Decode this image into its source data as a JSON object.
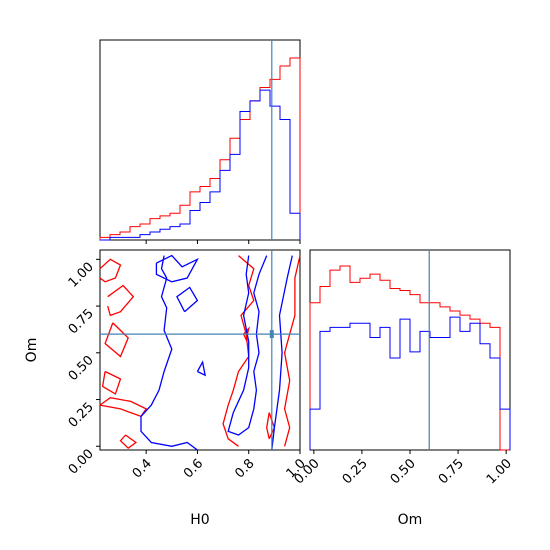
{
  "chart_data": [
    {
      "type": "histogram",
      "panel": "H0 marginal",
      "x_range": [
        0.22,
        1.0
      ],
      "truth": 0.89,
      "bins": [
        0.22,
        0.259,
        0.298,
        0.337,
        0.376,
        0.415,
        0.454,
        0.493,
        0.532,
        0.571,
        0.61,
        0.649,
        0.688,
        0.727,
        0.766,
        0.805,
        0.844,
        0.883,
        0.922,
        0.961,
        1.0
      ],
      "series": [
        {
          "color": "#ff0000",
          "counts": [
            1,
            2,
            3,
            5,
            6,
            8,
            9,
            10,
            13,
            18,
            20,
            23,
            30,
            38,
            45,
            52,
            57,
            60,
            65,
            68
          ]
        },
        {
          "color": "#0000ff",
          "counts": [
            0,
            1,
            1,
            1,
            2,
            3,
            4,
            5,
            6,
            11,
            14,
            18,
            26,
            32,
            48,
            52,
            56,
            50,
            45,
            10
          ]
        }
      ]
    },
    {
      "type": "contour",
      "panel": "H0 vs Om",
      "xlabel": "H0",
      "ylabel": "Om",
      "xlim": [
        0.22,
        1.0
      ],
      "ylim": [
        -0.02,
        1.05
      ],
      "xticks": [
        "0.4",
        "0.6",
        "0.8",
        "1.0"
      ],
      "yticks": [
        "0.00",
        "0.25",
        "0.50",
        "0.75",
        "1.00"
      ],
      "x_tick_values": [
        0.4,
        0.6,
        0.8,
        1.0
      ],
      "y_tick_values": [
        0.0,
        0.25,
        0.5,
        0.75,
        1.0
      ],
      "truth": {
        "H0": 0.89,
        "Om": 0.6
      },
      "series": [
        {
          "color": "#ff0000",
          "contours": [
            [
              [
                0.22,
                0.95
              ],
              [
                0.26,
                1.0
              ],
              [
                0.3,
                0.97
              ],
              [
                0.28,
                0.9
              ],
              [
                0.24,
                0.88
              ],
              [
                0.22,
                0.9
              ]
            ],
            [
              [
                0.25,
                0.8
              ],
              [
                0.31,
                0.86
              ],
              [
                0.35,
                0.8
              ],
              [
                0.3,
                0.72
              ],
              [
                0.26,
                0.7
              ],
              [
                0.25,
                0.75
              ]
            ],
            [
              [
                0.27,
                0.66
              ],
              [
                0.33,
                0.58
              ],
              [
                0.3,
                0.48
              ],
              [
                0.24,
                0.55
              ],
              [
                0.27,
                0.66
              ]
            ],
            [
              [
                0.24,
                0.4
              ],
              [
                0.3,
                0.36
              ],
              [
                0.28,
                0.28
              ],
              [
                0.23,
                0.32
              ],
              [
                0.24,
                0.4
              ]
            ],
            [
              [
                0.22,
                0.22
              ],
              [
                0.3,
                0.2
              ],
              [
                0.38,
                0.16
              ],
              [
                0.4,
                0.2
              ],
              [
                0.34,
                0.24
              ],
              [
                0.26,
                0.26
              ],
              [
                0.22,
                0.22
              ]
            ],
            [
              [
                0.32,
                0.06
              ],
              [
                0.36,
                0.02
              ],
              [
                0.33,
                -0.01
              ],
              [
                0.3,
                0.03
              ],
              [
                0.32,
                0.06
              ]
            ],
            [
              [
                0.76,
                1.02
              ],
              [
                0.82,
                0.95
              ],
              [
                0.8,
                0.86
              ],
              [
                0.82,
                0.78
              ],
              [
                0.77,
                0.7
              ],
              [
                0.79,
                0.6
              ],
              [
                0.8,
                0.48
              ],
              [
                0.76,
                0.4
              ],
              [
                0.74,
                0.3
              ],
              [
                0.72,
                0.22
              ],
              [
                0.7,
                0.12
              ],
              [
                0.72,
                0.04
              ],
              [
                0.76,
                0.0
              ]
            ],
            [
              [
                1.0,
                1.02
              ],
              [
                0.98,
                0.9
              ],
              [
                0.98,
                0.7
              ],
              [
                0.96,
                0.6
              ],
              [
                0.94,
                0.5
              ],
              [
                0.96,
                0.35
              ],
              [
                0.94,
                0.2
              ],
              [
                0.96,
                0.1
              ],
              [
                0.94,
                0.0
              ]
            ],
            [
              [
                0.88,
                0.04
              ],
              [
                0.9,
                0.1
              ],
              [
                0.88,
                0.18
              ],
              [
                0.87,
                0.1
              ],
              [
                0.88,
                0.04
              ]
            ],
            [
              [
                0.78,
                0.6
              ],
              [
                0.8,
                0.63
              ],
              [
                0.79,
                0.57
              ],
              [
                0.78,
                0.6
              ]
            ]
          ]
        },
        {
          "color": "#0000ff",
          "contours": [
            [
              [
                0.47,
                1.02
              ],
              [
                0.46,
                0.95
              ],
              [
                0.48,
                0.9
              ],
              [
                0.46,
                0.8
              ],
              [
                0.48,
                0.74
              ],
              [
                0.47,
                0.62
              ],
              [
                0.5,
                0.52
              ],
              [
                0.47,
                0.4
              ],
              [
                0.45,
                0.3
              ],
              [
                0.42,
                0.22
              ],
              [
                0.38,
                0.16
              ],
              [
                0.38,
                0.08
              ],
              [
                0.42,
                0.02
              ],
              [
                0.5,
                0.0
              ],
              [
                0.56,
                0.02
              ],
              [
                0.6,
                -0.02
              ]
            ],
            [
              [
                0.55,
                0.72
              ],
              [
                0.6,
                0.78
              ],
              [
                0.57,
                0.85
              ],
              [
                0.52,
                0.8
              ],
              [
                0.55,
                0.72
              ]
            ],
            [
              [
                0.6,
                0.4
              ],
              [
                0.62,
                0.45
              ],
              [
                0.63,
                0.38
              ],
              [
                0.6,
                0.4
              ]
            ],
            [
              [
                0.44,
                0.98
              ],
              [
                0.5,
                1.02
              ],
              [
                0.54,
                0.96
              ],
              [
                0.6,
                1.0
              ],
              [
                0.56,
                0.9
              ],
              [
                0.5,
                0.88
              ],
              [
                0.44,
                0.92
              ],
              [
                0.44,
                0.98
              ]
            ],
            [
              [
                0.87,
                1.02
              ],
              [
                0.84,
                0.92
              ],
              [
                0.82,
                0.82
              ],
              [
                0.84,
                0.72
              ],
              [
                0.83,
                0.6
              ],
              [
                0.84,
                0.5
              ],
              [
                0.82,
                0.4
              ],
              [
                0.83,
                0.3
              ],
              [
                0.82,
                0.2
              ],
              [
                0.8,
                0.1
              ],
              [
                0.76,
                0.06
              ],
              [
                0.72,
                0.08
              ],
              [
                0.74,
                0.18
              ],
              [
                0.78,
                0.3
              ],
              [
                0.8,
                0.42
              ],
              [
                0.8,
                0.56
              ],
              [
                0.78,
                0.7
              ],
              [
                0.8,
                0.82
              ],
              [
                0.79,
                0.92
              ],
              [
                0.8,
                1.02
              ]
            ],
            [
              [
                0.97,
                1.02
              ],
              [
                0.95,
                0.9
              ],
              [
                0.92,
                0.7
              ],
              [
                0.93,
                0.5
              ],
              [
                0.92,
                0.3
              ],
              [
                0.9,
                0.1
              ],
              [
                0.89,
                -0.02
              ]
            ]
          ]
        }
      ]
    },
    {
      "type": "histogram",
      "panel": "Om marginal",
      "xlabel": "Om",
      "x_range": [
        -0.02,
        1.02
      ],
      "xticks": [
        "0.00",
        "0.25",
        "0.50",
        "0.75",
        "1.00"
      ],
      "x_tick_values": [
        0.0,
        0.25,
        0.5,
        0.75,
        1.0
      ],
      "truth": 0.6,
      "bins": [
        -0.02,
        0.032,
        0.084,
        0.136,
        0.188,
        0.24,
        0.292,
        0.344,
        0.396,
        0.448,
        0.5,
        0.552,
        0.604,
        0.656,
        0.708,
        0.76,
        0.812,
        0.864,
        0.916,
        0.968,
        1.02
      ],
      "series": [
        {
          "color": "#ff0000",
          "counts": [
            72,
            80,
            88,
            90,
            82,
            84,
            86,
            83,
            79,
            78,
            76,
            72,
            72,
            70,
            68,
            66,
            64,
            62,
            60,
            0
          ]
        },
        {
          "color": "#0000ff",
          "counts": [
            20,
            58,
            60,
            60,
            62,
            62,
            55,
            60,
            45,
            64,
            48,
            58,
            55,
            55,
            65,
            58,
            62,
            52,
            45,
            20
          ]
        }
      ]
    }
  ]
}
